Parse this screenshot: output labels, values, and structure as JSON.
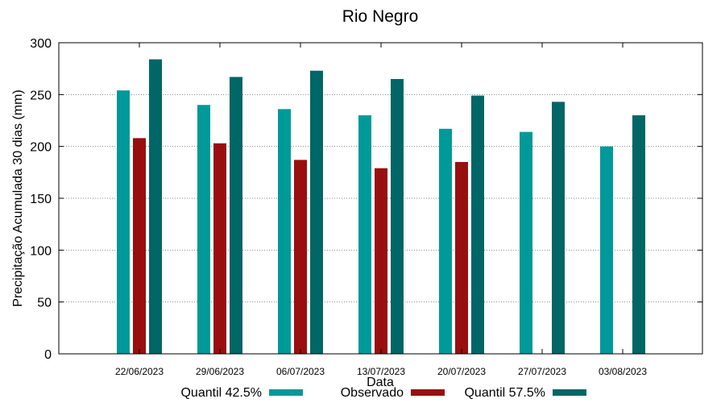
{
  "chart_data": {
    "type": "bar",
    "title": "Rio Negro",
    "xlabel": "Data",
    "ylabel": "Precipitação Acumulada 30 dias (mm)",
    "ylim": [
      0,
      300
    ],
    "yticks": [
      "0",
      "50",
      "100",
      "150",
      "200",
      "250",
      "300"
    ],
    "grid": true,
    "legend_position": "bottom",
    "categories": [
      "22/06/2023",
      "29/06/2023",
      "06/07/2023",
      "13/07/2023",
      "20/07/2023",
      "27/07/2023",
      "03/08/2023"
    ],
    "series": [
      {
        "name": "Quantil 42.5%",
        "color": "#009999",
        "values": [
          254,
          240,
          236,
          230,
          217,
          214,
          200
        ]
      },
      {
        "name": "Observado",
        "color": "#990f0f",
        "values": [
          208,
          203,
          187,
          179,
          185,
          null,
          null
        ]
      },
      {
        "name": "Quantil 57.5%",
        "color": "#006666",
        "values": [
          284,
          267,
          273,
          265,
          249,
          243,
          230
        ]
      }
    ]
  }
}
